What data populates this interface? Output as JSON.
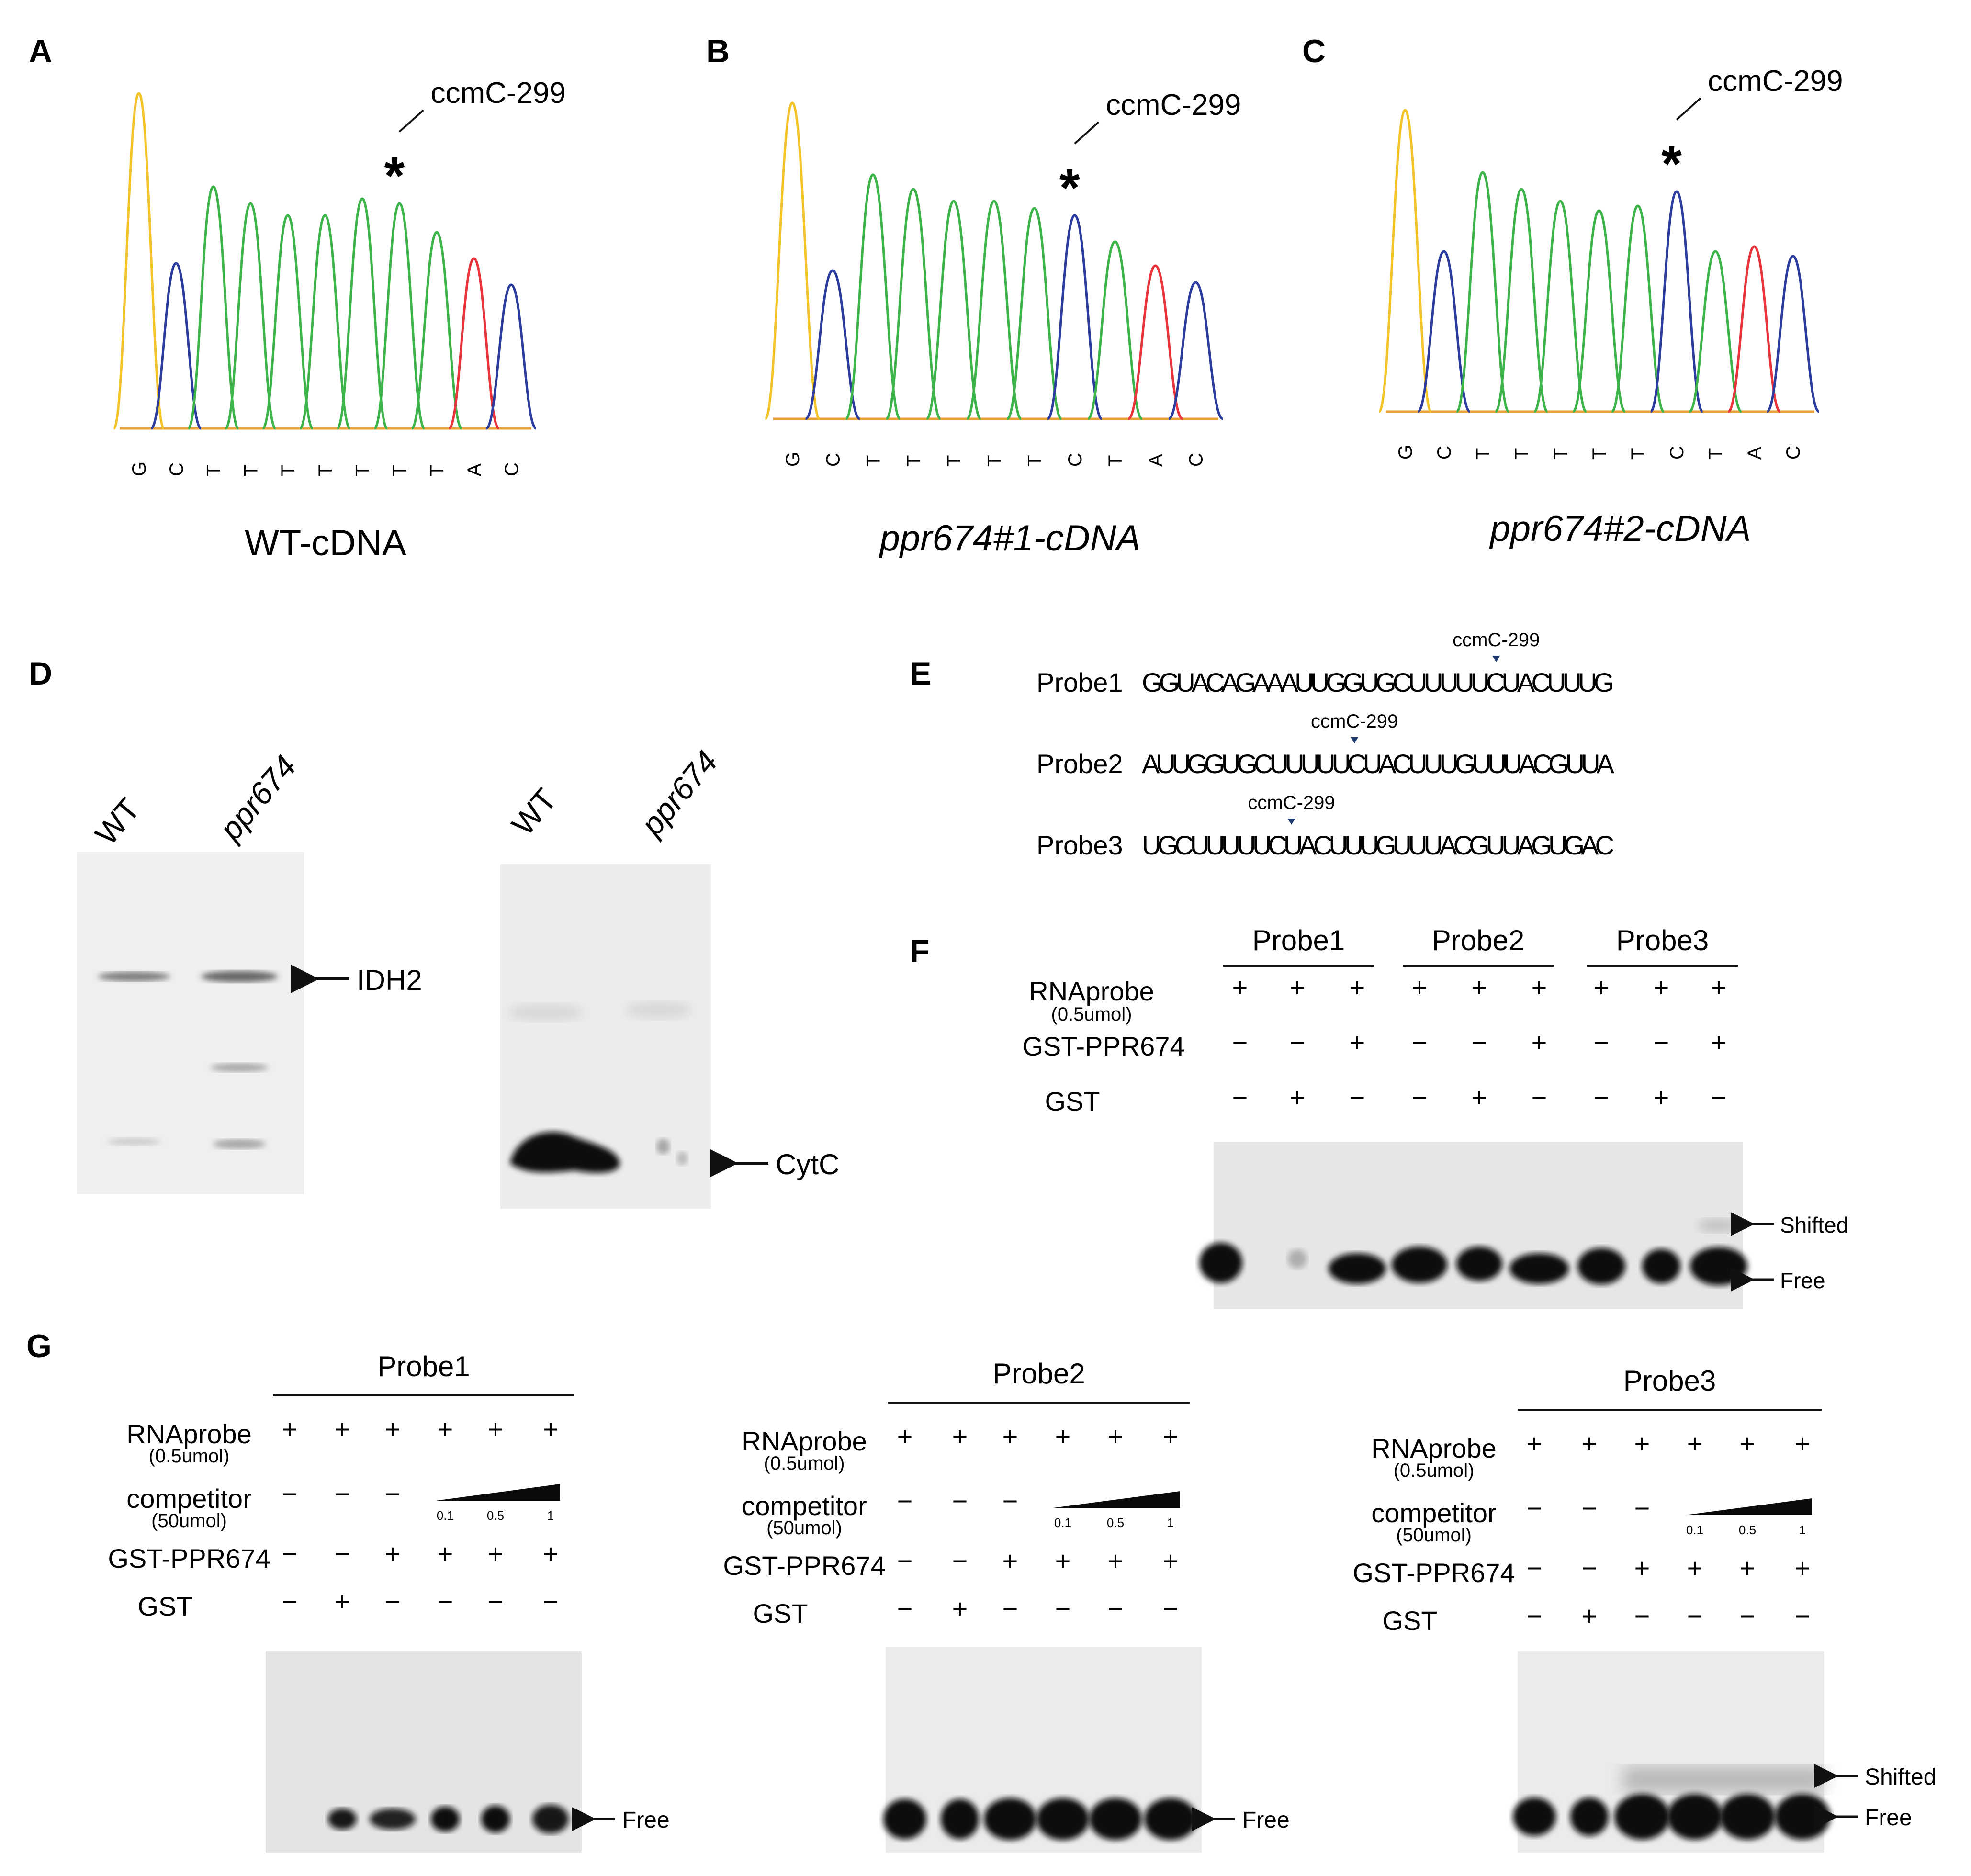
{
  "panels": {
    "A": {
      "letter": "A",
      "site_label": "ccmC-299",
      "bases": [
        "G",
        "C",
        "T",
        "T",
        "T",
        "T",
        "T",
        "T",
        "T",
        "A",
        "C"
      ],
      "caption": "WT-cDNA"
    },
    "B": {
      "letter": "B",
      "site_label": "ccmC-299",
      "bases": [
        "G",
        "C",
        "T",
        "T",
        "T",
        "T",
        "T",
        "C",
        "T",
        "A",
        "C"
      ],
      "caption": "ppr674#1-cDNA"
    },
    "C": {
      "letter": "C",
      "site_label": "ccmC-299",
      "bases": [
        "G",
        "C",
        "T",
        "T",
        "T",
        "T",
        "T",
        "C",
        "T",
        "A",
        "C"
      ],
      "caption": "ppr674#2-cDNA"
    },
    "D": {
      "letter": "D",
      "lanes_left": [
        "WT",
        "ppr674"
      ],
      "lanes_right": [
        "WT",
        "ppr674"
      ],
      "left_band_label": "IDH2",
      "right_band_label": "CytC"
    },
    "E": {
      "letter": "E",
      "site_label": "ccmC-299",
      "probes": [
        {
          "name": "Probe1",
          "sequence": "GGUACAGAAAUUGGUGCUUUUUCUACUUUG"
        },
        {
          "name": "Probe2",
          "sequence": "AUUGGUGCUUUUUCUACUUUGUUUACGUUA"
        },
        {
          "name": "Probe3",
          "sequence": "UGCUUUUUCUACUUUGUUUACGUUAGUGAC"
        }
      ]
    },
    "F": {
      "letter": "F",
      "probe_headers": [
        "Probe1",
        "Probe2",
        "Probe3"
      ],
      "rows": [
        {
          "label": "RNAprobe",
          "sublabel": "(0.5umol)",
          "signs": [
            "+",
            "+",
            "+",
            "+",
            "+",
            "+",
            "+",
            "+",
            "+"
          ]
        },
        {
          "label": "GST-PPR674",
          "sublabel": "",
          "signs": [
            "−",
            "−",
            "+",
            "−",
            "−",
            "+",
            "−",
            "−",
            "+"
          ]
        },
        {
          "label": "GST",
          "sublabel": "",
          "signs": [
            "−",
            "+",
            "−",
            "−",
            "+",
            "−",
            "−",
            "+",
            "−"
          ]
        }
      ],
      "band_labels": {
        "shifted": "Shifted",
        "free": "Free"
      }
    },
    "G": {
      "letter": "G",
      "blocks": [
        {
          "probe": "Probe1",
          "rnaprobe": [
            "+",
            "+",
            "+",
            "+",
            "+",
            "+"
          ],
          "gst_ppr674": [
            "−",
            "−",
            "+",
            "+",
            "+",
            "+"
          ],
          "gst": [
            "−",
            "+",
            "−",
            "−",
            "−",
            "−"
          ],
          "competitor_neg": [
            "−",
            "−",
            "−"
          ],
          "band_labels": [
            "Free"
          ]
        },
        {
          "probe": "Probe2",
          "rnaprobe": [
            "+",
            "+",
            "+",
            "+",
            "+",
            "+"
          ],
          "gst_ppr674": [
            "−",
            "−",
            "+",
            "+",
            "+",
            "+"
          ],
          "gst": [
            "−",
            "+",
            "−",
            "−",
            "−",
            "−"
          ],
          "competitor_neg": [
            "−",
            "−",
            "−"
          ],
          "band_labels": [
            "Free"
          ]
        },
        {
          "probe": "Probe3",
          "rnaprobe": [
            "+",
            "+",
            "+",
            "+",
            "+",
            "+"
          ],
          "gst_ppr674": [
            "−",
            "−",
            "+",
            "+",
            "+",
            "+"
          ],
          "gst": [
            "−",
            "+",
            "−",
            "−",
            "−",
            "−"
          ],
          "competitor_neg": [
            "−",
            "−",
            "−"
          ],
          "band_labels": [
            "Shifted",
            "Free"
          ]
        }
      ],
      "row_labels": {
        "rnaprobe": "RNAprobe",
        "rnaprobe_sub": "(0.5umol)",
        "competitor": "competitor",
        "competitor_sub": "(50umol)",
        "gst_ppr674": "GST-PPR674",
        "gst": "GST"
      },
      "competitor_ticks": [
        "0.1",
        "0.5",
        "1"
      ]
    }
  },
  "colors": {
    "trace_G": "#f2c42a",
    "trace_C": "#2b3c9e",
    "trace_T": "#3cb44a",
    "trace_A": "#e8343a",
    "baseline": "#e8a23a"
  }
}
